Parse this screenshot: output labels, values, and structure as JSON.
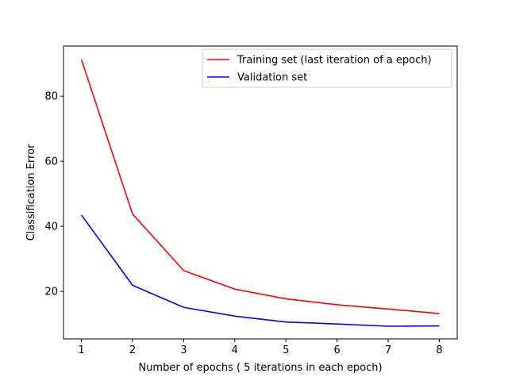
{
  "chart_data": {
    "type": "line",
    "xlabel": "Number of epochs ( 5 iterations in each epoch)",
    "ylabel": "Classification Error",
    "x": [
      1,
      2,
      3,
      4,
      5,
      6,
      7,
      8
    ],
    "xticks": [
      "1",
      "2",
      "3",
      "4",
      "5",
      "6",
      "7",
      "8"
    ],
    "yticks": [
      "20",
      "40",
      "60",
      "80"
    ],
    "xlim": [
      0.65,
      8.35
    ],
    "ylim": [
      5.4,
      95.4
    ],
    "grid": false,
    "legend_position": "top-right",
    "series": [
      {
        "name": "Training set (last iteration of a epoch)",
        "color": "#ff0000",
        "values": [
          91.3,
          43.8,
          26.4,
          20.7,
          17.7,
          15.9,
          14.6,
          13.2
        ]
      },
      {
        "name": "Validation set",
        "color": "#0000ff",
        "values": [
          43.5,
          21.9,
          15.1,
          12.4,
          10.6,
          10.0,
          9.3,
          9.4
        ]
      }
    ]
  }
}
